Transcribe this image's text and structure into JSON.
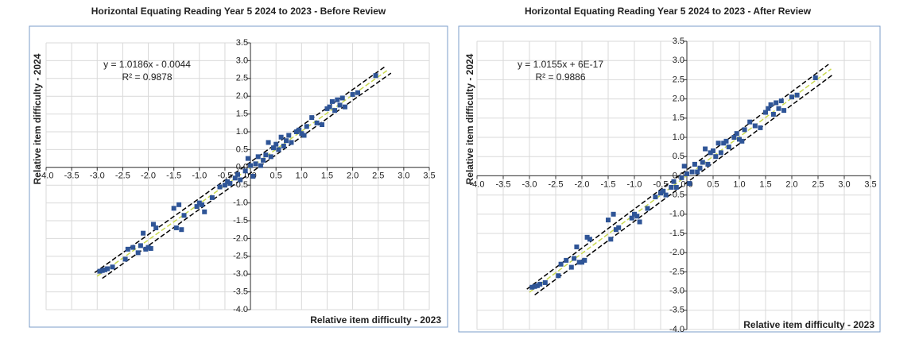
{
  "chart_data": [
    {
      "type": "scatter",
      "title": "Horizontal Equating Reading Year 5 2024 to 2023 - Before Review",
      "x_label": "Relative item difficulty - 2023",
      "y_label": "Relative item difficulty - 2024",
      "annotations": [
        "y = 1.0186x - 0.0044",
        "R² = 0.9878"
      ],
      "xlim": [
        -4,
        3.5
      ],
      "ylim": [
        -4,
        3.5
      ],
      "grid": true,
      "xticks": [
        {
          "value": -4,
          "label": "-4.0"
        },
        -3.5,
        {
          "value": -3,
          "label": "-3.0"
        },
        -2.5,
        {
          "value": -2,
          "label": "-2.0"
        },
        -1.5,
        {
          "value": -1,
          "label": "-1.0"
        },
        -0.5,
        {
          "value": 0,
          "label": "0.0"
        },
        0.5,
        {
          "value": 1,
          "label": "1.0"
        },
        1.5,
        {
          "value": 2,
          "label": "2.0"
        },
        2.5,
        {
          "value": 3,
          "label": "3.0"
        },
        3.5
      ],
      "yticks": [
        {
          "value": -4,
          "label": "-4.0"
        },
        -3.5,
        {
          "value": -3,
          "label": "-3.0"
        },
        -2.5,
        {
          "value": -2,
          "label": "-2.0"
        },
        -1.5,
        {
          "value": -1,
          "label": "-1.0"
        },
        -0.5,
        {
          "value": 0,
          "label": "0.0"
        },
        0.5,
        {
          "value": 1,
          "label": "1.0"
        },
        1.5,
        {
          "value": 2,
          "label": "2.0"
        },
        2.5,
        {
          "value": 3,
          "label": "3.0"
        },
        3.5
      ],
      "series": [
        {
          "color": "#2f5597",
          "x": [
            -2.95,
            -2.9,
            -2.85,
            -2.8,
            -2.7,
            -2.45,
            -2.4,
            -2.3,
            -2.2,
            -2.15,
            -2.1,
            -2.05,
            -2.0,
            -1.95,
            -1.9,
            -1.85,
            -1.5,
            -1.45,
            -1.4,
            -1.35,
            -1.3,
            -1.05,
            -1.0,
            -0.95,
            -0.9,
            -0.75,
            -0.6,
            -0.5,
            -0.45,
            -0.4,
            -0.3,
            -0.25,
            -0.2,
            -0.1,
            -0.05,
            0.0,
            0.05,
            0.1,
            0.15,
            0.2,
            0.25,
            0.3,
            0.35,
            0.4,
            0.45,
            0.5,
            0.55,
            0.6,
            0.65,
            0.7,
            0.75,
            0.8,
            0.9,
            0.95,
            1.0,
            1.05,
            1.1,
            1.2,
            1.3,
            1.4,
            1.5,
            1.55,
            1.6,
            1.65,
            1.7,
            1.75,
            1.8,
            1.85,
            2.0,
            2.1,
            2.45
          ],
          "values": [
            -2.92,
            -2.9,
            -2.88,
            -2.85,
            -2.8,
            -2.58,
            -2.3,
            -2.25,
            -2.4,
            -2.2,
            -1.85,
            -2.3,
            -2.25,
            -2.28,
            -1.6,
            -1.7,
            -1.15,
            -1.7,
            -1.05,
            -1.75,
            -1.35,
            -1.1,
            -1.0,
            -1.05,
            -1.25,
            -0.85,
            -0.55,
            -0.5,
            -0.4,
            -0.45,
            -0.3,
            -0.2,
            -0.35,
            -0.1,
            0.25,
            0.05,
            -0.25,
            0.1,
            0.3,
            0.05,
            0.2,
            0.35,
            0.7,
            0.3,
            0.55,
            0.65,
            0.5,
            0.85,
            0.6,
            0.75,
            0.9,
            0.7,
            1.0,
            1.05,
            0.95,
            0.9,
            1.15,
            1.4,
            1.25,
            1.2,
            1.65,
            1.7,
            1.85,
            1.6,
            1.9,
            1.75,
            1.95,
            1.7,
            2.05,
            2.1,
            2.58
          ]
        }
      ],
      "lines": [
        {
          "color": "#000000",
          "x": [
            -3.05,
            2.65
          ],
          "values": [
            -2.96,
            2.85
          ]
        },
        {
          "color": "#000000",
          "x": [
            -2.9,
            2.75
          ],
          "values": [
            -3.12,
            2.65
          ]
        },
        {
          "color": "#c9d94f",
          "x": [
            -3.0,
            2.7
          ],
          "values": [
            -3.06,
            2.75
          ]
        }
      ]
    },
    {
      "type": "scatter",
      "title": "Horizontal Equating Reading Year 5 2024 to 2023 - After Review",
      "x_label": "Relative item difficulty - 2023",
      "y_label": "Relative item difficulty - 2024",
      "annotations": [
        "y = 1.0155x + 6E-17",
        "R² = 0.9886"
      ],
      "xlim": [
        -4,
        3.5
      ],
      "ylim": [
        -4,
        3.5
      ],
      "grid": true,
      "xticks": [
        {
          "value": -4,
          "label": "-4.0"
        },
        -3.5,
        {
          "value": -3,
          "label": "-3.0"
        },
        -2.5,
        {
          "value": -2,
          "label": "-2.0"
        },
        -1.5,
        {
          "value": -1,
          "label": "-1.0"
        },
        -0.5,
        {
          "value": 0,
          "label": "0.0"
        },
        0.5,
        {
          "value": 1,
          "label": "1.0"
        },
        1.5,
        {
          "value": 2,
          "label": "2.0"
        },
        2.5,
        {
          "value": 3,
          "label": "3.0"
        },
        3.5
      ],
      "yticks": [
        {
          "value": -4,
          "label": "-4.0"
        },
        -3.5,
        {
          "value": -3,
          "label": "-3.0"
        },
        -2.5,
        {
          "value": -2,
          "label": "-2.0"
        },
        -1.5,
        {
          "value": -1,
          "label": "-1.0"
        },
        -0.5,
        {
          "value": 0,
          "label": "0.0"
        },
        0.5,
        {
          "value": 1,
          "label": "1.0"
        },
        1.5,
        {
          "value": 2,
          "label": "2.0"
        },
        2.5,
        {
          "value": 3,
          "label": "3.0"
        },
        3.5
      ],
      "series": [
        {
          "color": "#2f5597",
          "x": [
            -2.95,
            -2.9,
            -2.85,
            -2.8,
            -2.7,
            -2.45,
            -2.4,
            -2.3,
            -2.2,
            -2.15,
            -2.1,
            -2.05,
            -2.0,
            -1.95,
            -1.9,
            -1.85,
            -1.5,
            -1.45,
            -1.4,
            -1.35,
            -1.3,
            -1.05,
            -1.0,
            -0.95,
            -0.9,
            -0.75,
            -0.6,
            -0.5,
            -0.45,
            -0.4,
            -0.3,
            -0.25,
            -0.2,
            -0.1,
            -0.05,
            0.0,
            0.05,
            0.1,
            0.15,
            0.2,
            0.25,
            0.3,
            0.35,
            0.4,
            0.45,
            0.5,
            0.55,
            0.6,
            0.65,
            0.7,
            0.75,
            0.8,
            0.9,
            0.95,
            1.0,
            1.05,
            1.1,
            1.2,
            1.3,
            1.4,
            1.5,
            1.55,
            1.6,
            1.65,
            1.7,
            1.75,
            1.8,
            1.85,
            2.0,
            2.1,
            2.45
          ],
          "values": [
            -2.9,
            -2.88,
            -2.86,
            -2.82,
            -2.78,
            -2.6,
            -2.3,
            -2.2,
            -2.38,
            -2.15,
            -1.85,
            -2.25,
            -2.25,
            -2.2,
            -1.6,
            -1.65,
            -1.15,
            -1.65,
            -1.0,
            -1.4,
            -1.35,
            -1.1,
            -1.0,
            -1.05,
            -1.2,
            -0.85,
            -0.55,
            -0.45,
            -0.4,
            -0.5,
            -0.3,
            -0.15,
            -0.3,
            -0.05,
            0.25,
            0.05,
            -0.2,
            0.1,
            0.3,
            0.1,
            0.2,
            0.35,
            0.7,
            0.3,
            0.6,
            0.65,
            0.5,
            0.85,
            0.6,
            0.85,
            0.9,
            0.75,
            1.0,
            1.1,
            0.95,
            0.9,
            1.2,
            1.4,
            1.3,
            1.25,
            1.65,
            1.75,
            1.85,
            1.6,
            1.9,
            1.75,
            1.95,
            1.7,
            2.05,
            2.1,
            2.55
          ]
        }
      ],
      "lines": [
        {
          "color": "#000000",
          "x": [
            -3.05,
            2.7
          ],
          "values": [
            -2.95,
            2.9
          ]
        },
        {
          "color": "#000000",
          "x": [
            -2.9,
            2.8
          ],
          "values": [
            -3.1,
            2.65
          ]
        },
        {
          "color": "#c9d94f",
          "x": [
            -3.0,
            2.75
          ],
          "values": [
            -3.03,
            2.78
          ]
        }
      ]
    }
  ]
}
